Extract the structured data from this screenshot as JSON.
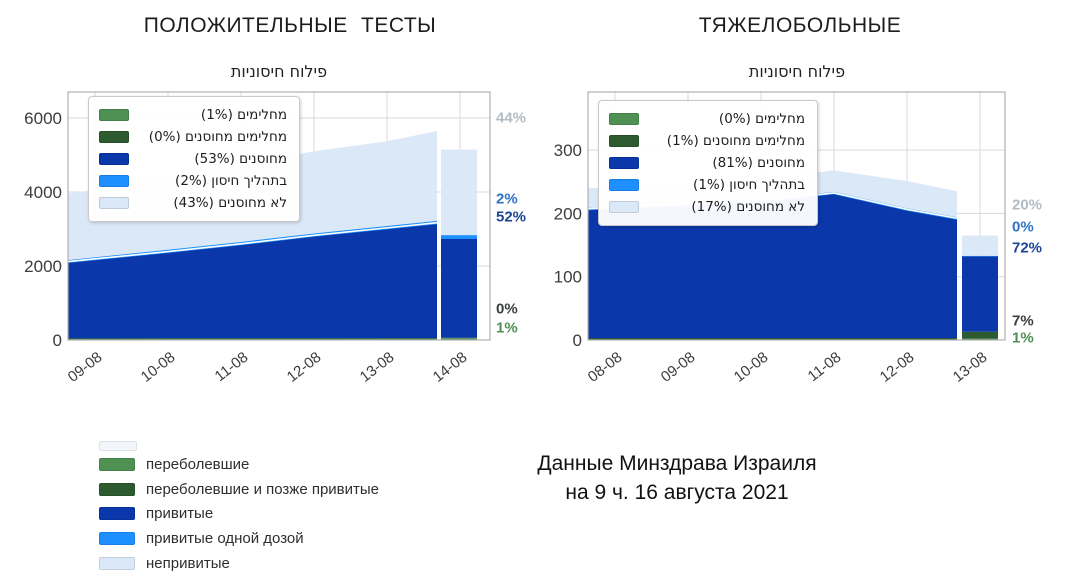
{
  "caption": {
    "line1": "Данные Минздрава Израиля",
    "line2": "на 9 ч. 16 августа 2021"
  },
  "colors": {
    "recovered": "#4f9053",
    "recovered_vaccinated": "#2d5a2f",
    "vaccinated": "#0a38ab",
    "one_dose": "#1e8fff",
    "unvaccinated": "#dbe8f8",
    "grid": "#d9d9d9",
    "plot_border": "#b0b0b0",
    "tick_text": "#3c3c3c",
    "annotation_gray": "#b2bcc4",
    "annotation_light_blue": "#2e73c8",
    "annotation_dark_blue": "#1a4694",
    "annotation_dark_green": "#3a3f3a",
    "annotation_green": "#4f8f52"
  },
  "bottom_legend": [
    {
      "key": "recovered",
      "label": "переболевшие"
    },
    {
      "key": "recovered_vaccinated",
      "label": "переболевшие и позже привитые"
    },
    {
      "key": "vaccinated",
      "label": "привитые"
    },
    {
      "key": "one_dose",
      "label": "привитые одной дозой"
    },
    {
      "key": "unvaccinated",
      "label": "непривитые"
    }
  ],
  "chart_data": [
    {
      "id": "positive_tests",
      "type": "stacked-area+bar",
      "title": "ПОЛОЖИТЕЛЬНЫЕ ТЕСТЫ",
      "subtitle": "פילוח חיסוניות",
      "ylabel": "",
      "xlabel": "",
      "ylim": [
        0,
        6700
      ],
      "y_ticks": [
        0,
        2000,
        4000,
        6000
      ],
      "x_ticks": [
        "09-08",
        "10-08",
        "11-08",
        "12-08",
        "13-08",
        "14-08"
      ],
      "legend_position": "upper-left",
      "series": [
        {
          "key": "recovered",
          "label": "מחלימים (1%)",
          "cumulative": [
            35,
            36,
            37,
            38,
            39,
            40
          ]
        },
        {
          "key": "recovered_vaccinated",
          "label": "מחלימים מחוסנים (0%)",
          "cumulative": [
            45,
            46,
            47,
            48,
            49,
            50
          ]
        },
        {
          "key": "vaccinated",
          "label": "מחוסנים (53%)",
          "cumulative": [
            2080,
            2350,
            2560,
            2790,
            2990,
            3130
          ]
        },
        {
          "key": "one_dose",
          "label": "בתהליך חיסון (2%)",
          "cumulative": [
            2160,
            2440,
            2650,
            2880,
            3080,
            3220
          ]
        },
        {
          "key": "unvaccinated",
          "label": "לא מחוסנים (43%)",
          "cumulative": [
            3960,
            4330,
            4720,
            5100,
            5370,
            5650
          ]
        }
      ],
      "bar": {
        "date": "14-08",
        "total": 5145,
        "segment_values": [
          50,
          10,
          2670,
          105,
          2310
        ],
        "segment_percents": [
          "1%",
          "0%",
          "52%",
          "2%",
          "44%"
        ]
      },
      "annotations": [
        {
          "text": "44%",
          "color_key": "annotation_gray",
          "y_value": 6000
        },
        {
          "text": "2%",
          "color_key": "annotation_light_blue",
          "y_value": 3800
        },
        {
          "text": "52%",
          "color_key": "annotation_dark_blue",
          "y_value": 3320
        },
        {
          "text": "0%",
          "color_key": "annotation_dark_green",
          "y_value": 840
        },
        {
          "text": "1%",
          "color_key": "annotation_green",
          "y_value": 320
        }
      ]
    },
    {
      "id": "severe_cases",
      "type": "stacked-area+bar",
      "title": "ТЯЖЕЛОБОЛЬНЫЕ",
      "subtitle": "פילוח חיסוניות",
      "ylabel": "",
      "xlabel": "",
      "ylim": [
        0,
        390
      ],
      "y_ticks": [
        0,
        100,
        200,
        300
      ],
      "x_ticks": [
        "08-08",
        "09-08",
        "10-08",
        "11-08",
        "12-08",
        "13-08"
      ],
      "legend_position": "upper-left",
      "series": [
        {
          "key": "recovered",
          "label": "מחלימים (0%)",
          "cumulative": [
            1,
            1,
            1,
            1,
            1,
            1
          ]
        },
        {
          "key": "recovered_vaccinated",
          "label": "מחלימים מחוסנים (1%)",
          "cumulative": [
            3,
            3,
            3,
            3,
            3,
            3
          ]
        },
        {
          "key": "vaccinated",
          "label": "מחוסנים (81%)",
          "cumulative": [
            205,
            212,
            218,
            230,
            204,
            190
          ]
        },
        {
          "key": "one_dose",
          "label": "בתהליך חיסון (1%)",
          "cumulative": [
            209,
            216,
            222,
            234,
            208,
            194
          ]
        },
        {
          "key": "unvaccinated",
          "label": "לא מחוסנים (17%)",
          "cumulative": [
            240,
            247,
            254,
            268,
            251,
            235
          ]
        }
      ],
      "bar": {
        "date": "13-08",
        "total": 165,
        "segment_values": [
          2,
          11,
          119,
          1,
          32
        ],
        "segment_percents": [
          "1%",
          "7%",
          "72%",
          "0%",
          "20%"
        ]
      },
      "annotations": [
        {
          "text": "20%",
          "color_key": "annotation_gray",
          "y_value": 213
        },
        {
          "text": "0%",
          "color_key": "annotation_light_blue",
          "y_value": 178
        },
        {
          "text": "72%",
          "color_key": "annotation_dark_blue",
          "y_value": 145
        },
        {
          "text": "7%",
          "color_key": "annotation_dark_green",
          "y_value": 30
        },
        {
          "text": "1%",
          "color_key": "annotation_green",
          "y_value": 3
        }
      ]
    }
  ]
}
